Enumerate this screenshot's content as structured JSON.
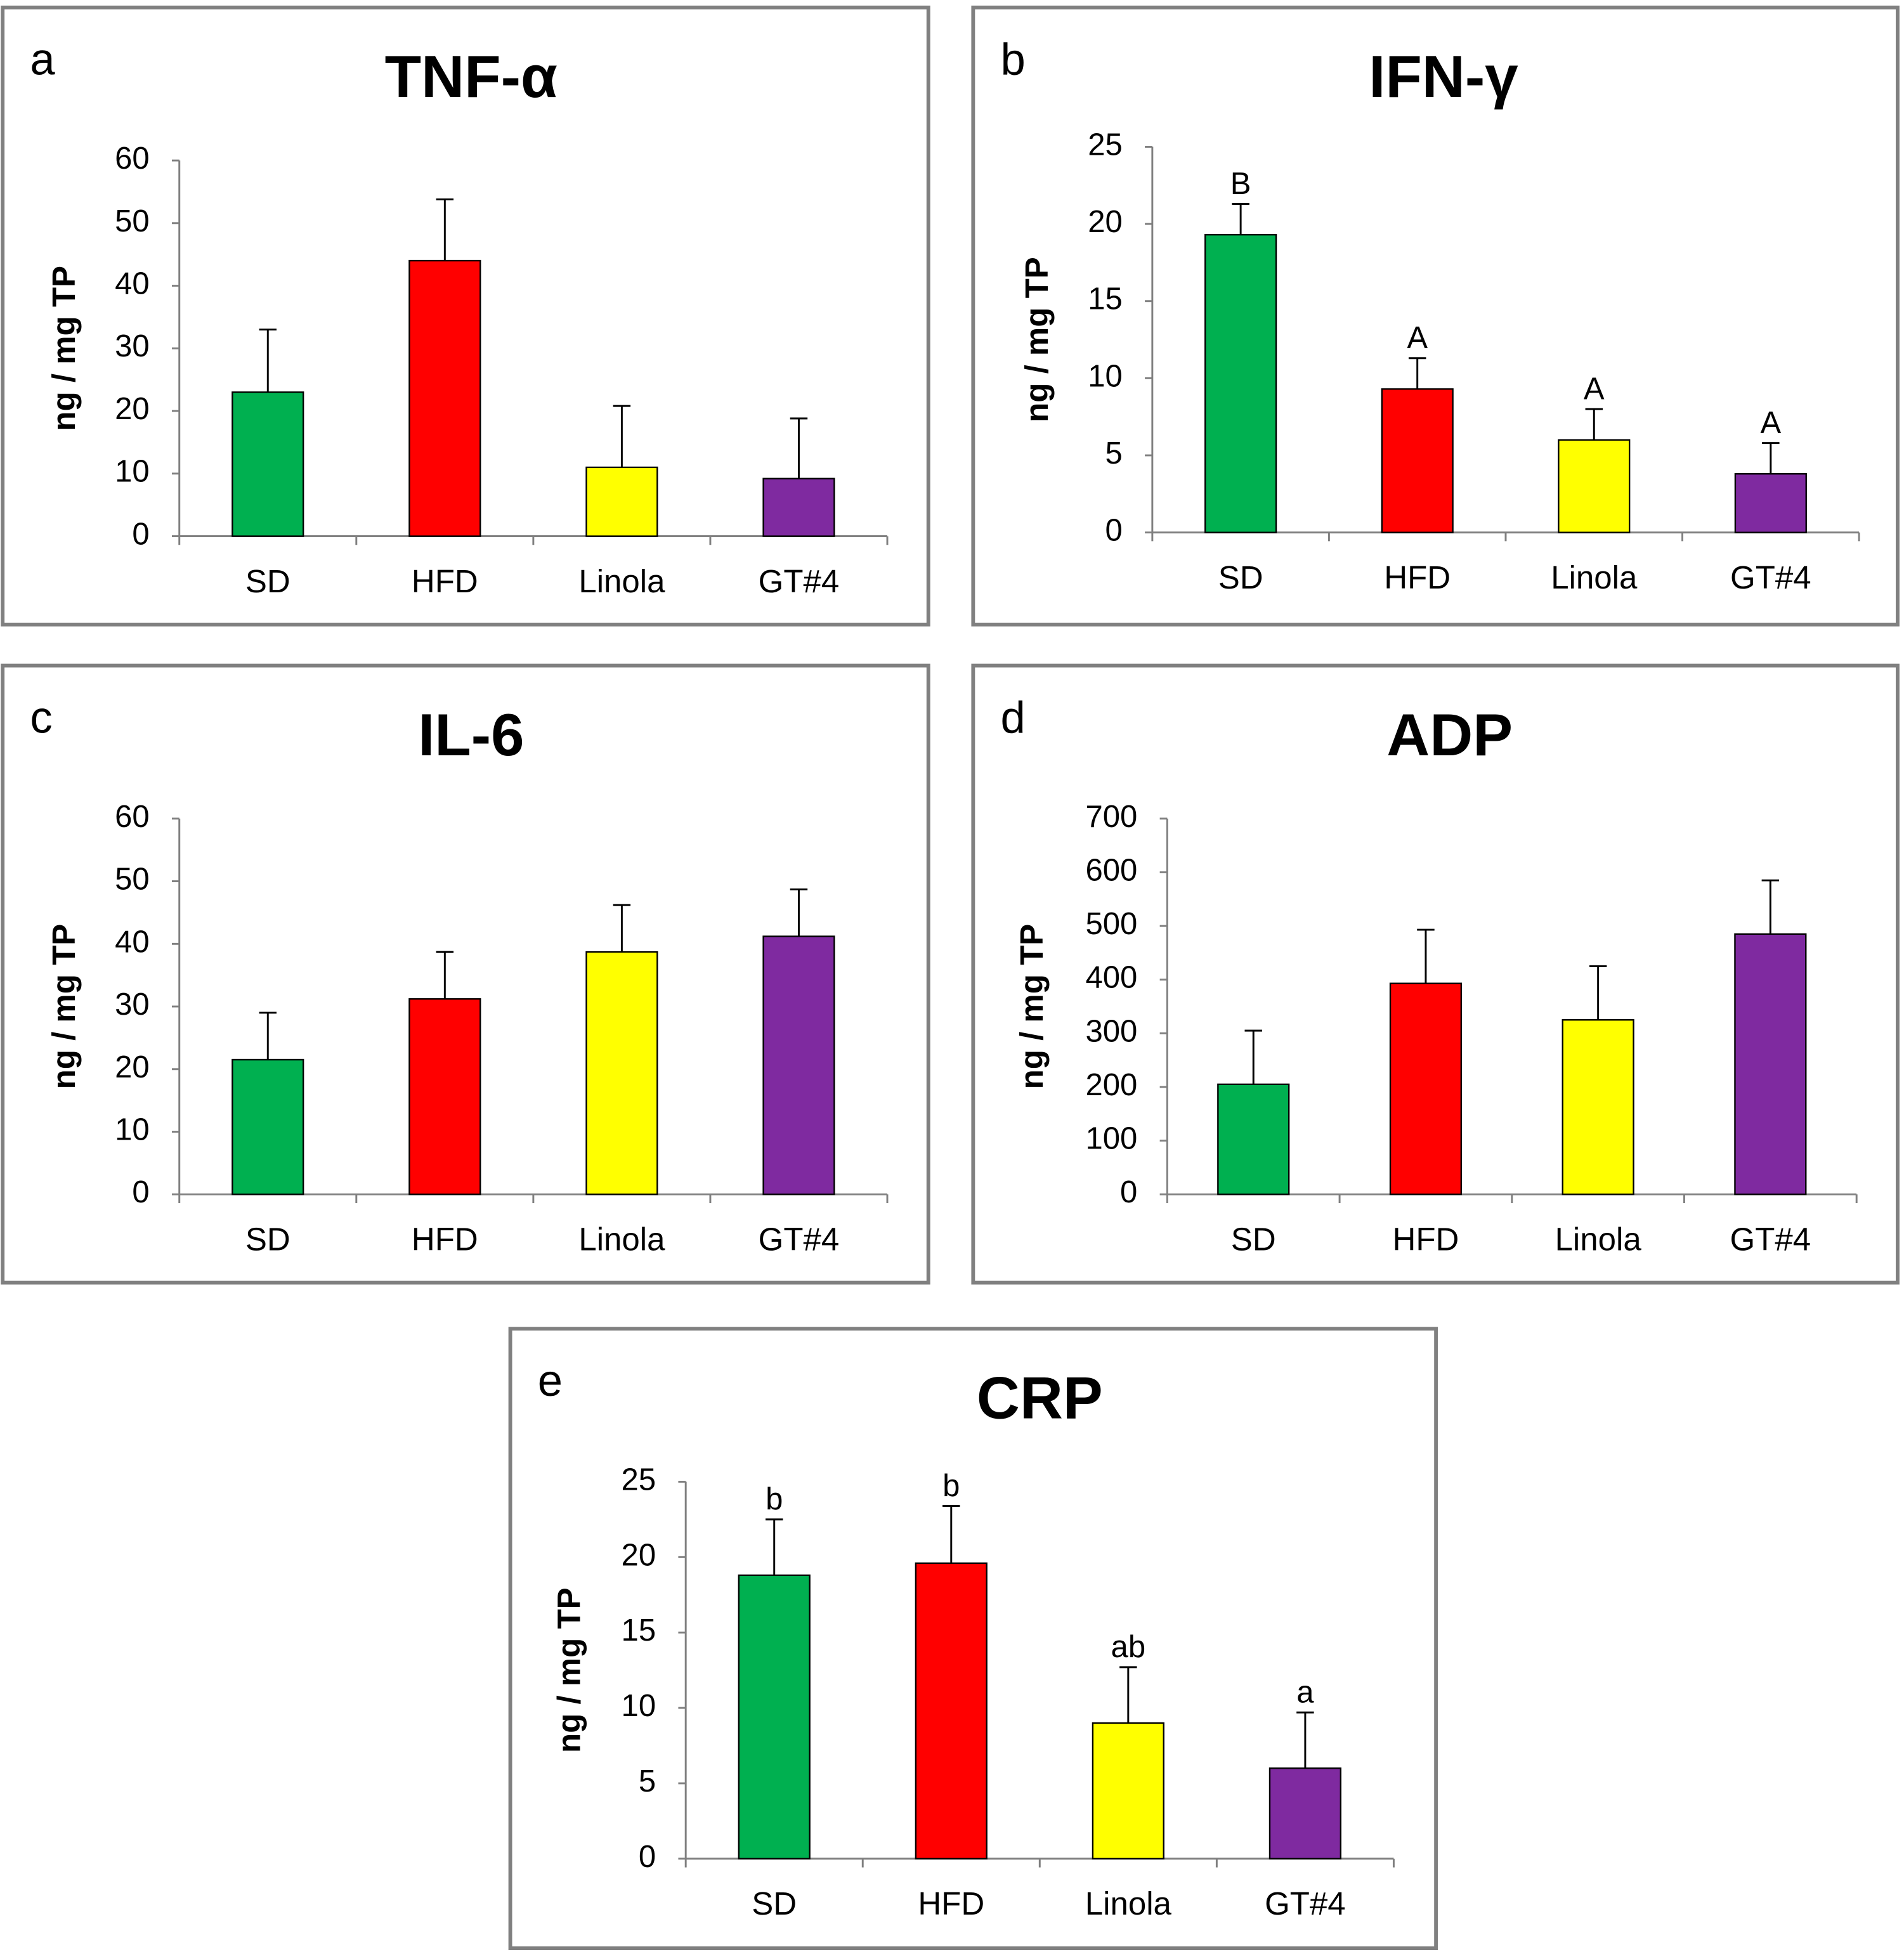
{
  "chart_data": [
    {
      "type": "bar",
      "panel": "a",
      "title": "TNF-α",
      "ylabel": "ng / mg TP",
      "ylim": [
        0,
        60
      ],
      "yticks": [
        0,
        10,
        20,
        30,
        40,
        50,
        60
      ],
      "categories": [
        "SD",
        "HFD",
        "Linola",
        "GT#4"
      ],
      "values": [
        23,
        44,
        11,
        9.2
      ],
      "errors": [
        10,
        9.8,
        9.8,
        9.6
      ],
      "labels": [
        "",
        "",
        "",
        ""
      ]
    },
    {
      "type": "bar",
      "panel": "b",
      "title": "IFN-γ",
      "ylabel": "ng / mg TP",
      "ylim": [
        0,
        25
      ],
      "yticks": [
        0,
        5,
        10,
        15,
        20,
        25
      ],
      "categories": [
        "SD",
        "HFD",
        "Linola",
        "GT#4"
      ],
      "values": [
        19.3,
        9.3,
        6,
        3.8
      ],
      "errors": [
        2,
        2,
        2,
        2
      ],
      "labels": [
        "B",
        "A",
        "A",
        "A"
      ]
    },
    {
      "type": "bar",
      "panel": "c",
      "title": "IL-6",
      "ylabel": "ng / mg TP",
      "ylim": [
        0,
        60
      ],
      "yticks": [
        0,
        10,
        20,
        30,
        40,
        50,
        60
      ],
      "categories": [
        "SD",
        "HFD",
        "Linola",
        "GT#4"
      ],
      "values": [
        21.5,
        31.2,
        38.7,
        41.2
      ],
      "errors": [
        7.5,
        7.5,
        7.5,
        7.5
      ],
      "labels": [
        "",
        "",
        "",
        ""
      ]
    },
    {
      "type": "bar",
      "panel": "d",
      "title": "ADP",
      "ylabel": "ng / mg TP",
      "ylim": [
        0,
        700
      ],
      "yticks": [
        0,
        100,
        200,
        300,
        400,
        500,
        600,
        700
      ],
      "categories": [
        "SD",
        "HFD",
        "Linola",
        "GT#4"
      ],
      "values": [
        205,
        393,
        325,
        485
      ],
      "errors": [
        100,
        100,
        100,
        100
      ],
      "labels": [
        "",
        "",
        "",
        ""
      ]
    },
    {
      "type": "bar",
      "panel": "e",
      "title": "CRP",
      "ylabel": "ng / mg TP",
      "ylim": [
        0,
        25
      ],
      "yticks": [
        0,
        5,
        10,
        15,
        20,
        25
      ],
      "categories": [
        "SD",
        "HFD",
        "Linola",
        "GT#4"
      ],
      "values": [
        18.8,
        19.6,
        9,
        6
      ],
      "errors": [
        3.7,
        3.8,
        3.7,
        3.7
      ],
      "labels": [
        "b",
        "b",
        "ab",
        "a"
      ]
    }
  ],
  "colors": {
    "SD": "#00b050",
    "HFD": "#ff0000",
    "Linola": "#ffff00",
    "GT#4": "#7f2aa0"
  }
}
